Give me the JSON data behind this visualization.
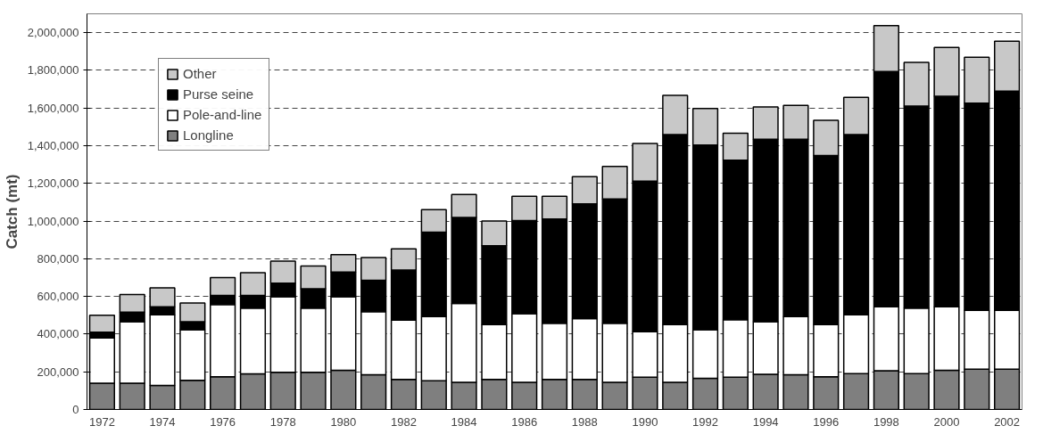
{
  "chart_data": {
    "type": "bar",
    "stacked": true,
    "ylabel": "Catch (mt)",
    "categories": [
      "1972",
      null,
      "1974",
      null,
      "1976",
      null,
      "1978",
      null,
      "1980",
      null,
      "1982",
      null,
      "1984",
      null,
      "1986",
      null,
      "1988",
      null,
      "1990",
      null,
      "1992",
      null,
      "1994",
      null,
      "1996",
      null,
      "1998",
      null,
      "2000",
      null,
      "2002"
    ],
    "series": [
      {
        "name": "Longline",
        "color": "#7f7f7f",
        "values": [
          140000,
          140000,
          128000,
          155000,
          174000,
          189000,
          198000,
          198000,
          208000,
          184000,
          160000,
          153000,
          144000,
          160000,
          144000,
          160000,
          160000,
          144000,
          171000,
          144000,
          166000,
          171000,
          187000,
          184000,
          174000,
          190000,
          206000,
          190000,
          208000,
          214000,
          214000
        ]
      },
      {
        "name": "Pole-and-line",
        "color": "#ffffff",
        "values": [
          240000,
          326000,
          374000,
          268000,
          383000,
          349000,
          400000,
          340000,
          390000,
          335000,
          314000,
          340000,
          419000,
          290000,
          365000,
          298000,
          323000,
          314000,
          242000,
          306000,
          257000,
          306000,
          279000,
          309000,
          276000,
          312000,
          339000,
          348000,
          337000,
          312000,
          312000
        ]
      },
      {
        "name": "Purse seine",
        "color": "#000000",
        "values": [
          30000,
          51000,
          43000,
          43000,
          48000,
          67000,
          72000,
          103000,
          131000,
          167000,
          266000,
          448000,
          456000,
          419000,
          494000,
          553000,
          608000,
          659000,
          799000,
          1009000,
          981000,
          846000,
          968000,
          941000,
          898000,
          957000,
          1249000,
          1072000,
          1117000,
          1100000,
          1164000
        ]
      },
      {
        "name": "Other",
        "color": "#c8c8c8",
        "values": [
          90000,
          93000,
          101000,
          99000,
          95000,
          121000,
          118000,
          120000,
          93000,
          120000,
          112000,
          120000,
          122000,
          131000,
          128000,
          120000,
          145000,
          173000,
          200000,
          208000,
          193000,
          143000,
          172000,
          180000,
          187000,
          198000,
          243000,
          232000,
          260000,
          244000,
          264000
        ]
      }
    ],
    "ylim": [
      0,
      2100000
    ],
    "yticks": [
      {
        "value": 0,
        "label": "0"
      },
      {
        "value": 200000,
        "label": "200,000"
      },
      {
        "value": 400000,
        "label": "400,000"
      },
      {
        "value": 600000,
        "label": "600,000"
      },
      {
        "value": 800000,
        "label": "800,000"
      },
      {
        "value": 1000000,
        "label": "1,000,000"
      },
      {
        "value": 1200000,
        "label": "1,200,000"
      },
      {
        "value": 1400000,
        "label": "1,400,000"
      },
      {
        "value": 1600000,
        "label": "1,600,000"
      },
      {
        "value": 1800000,
        "label": "1,800,000"
      },
      {
        "value": 2000000,
        "label": "2,000,000"
      }
    ],
    "grid": "y",
    "legend": "top left"
  }
}
